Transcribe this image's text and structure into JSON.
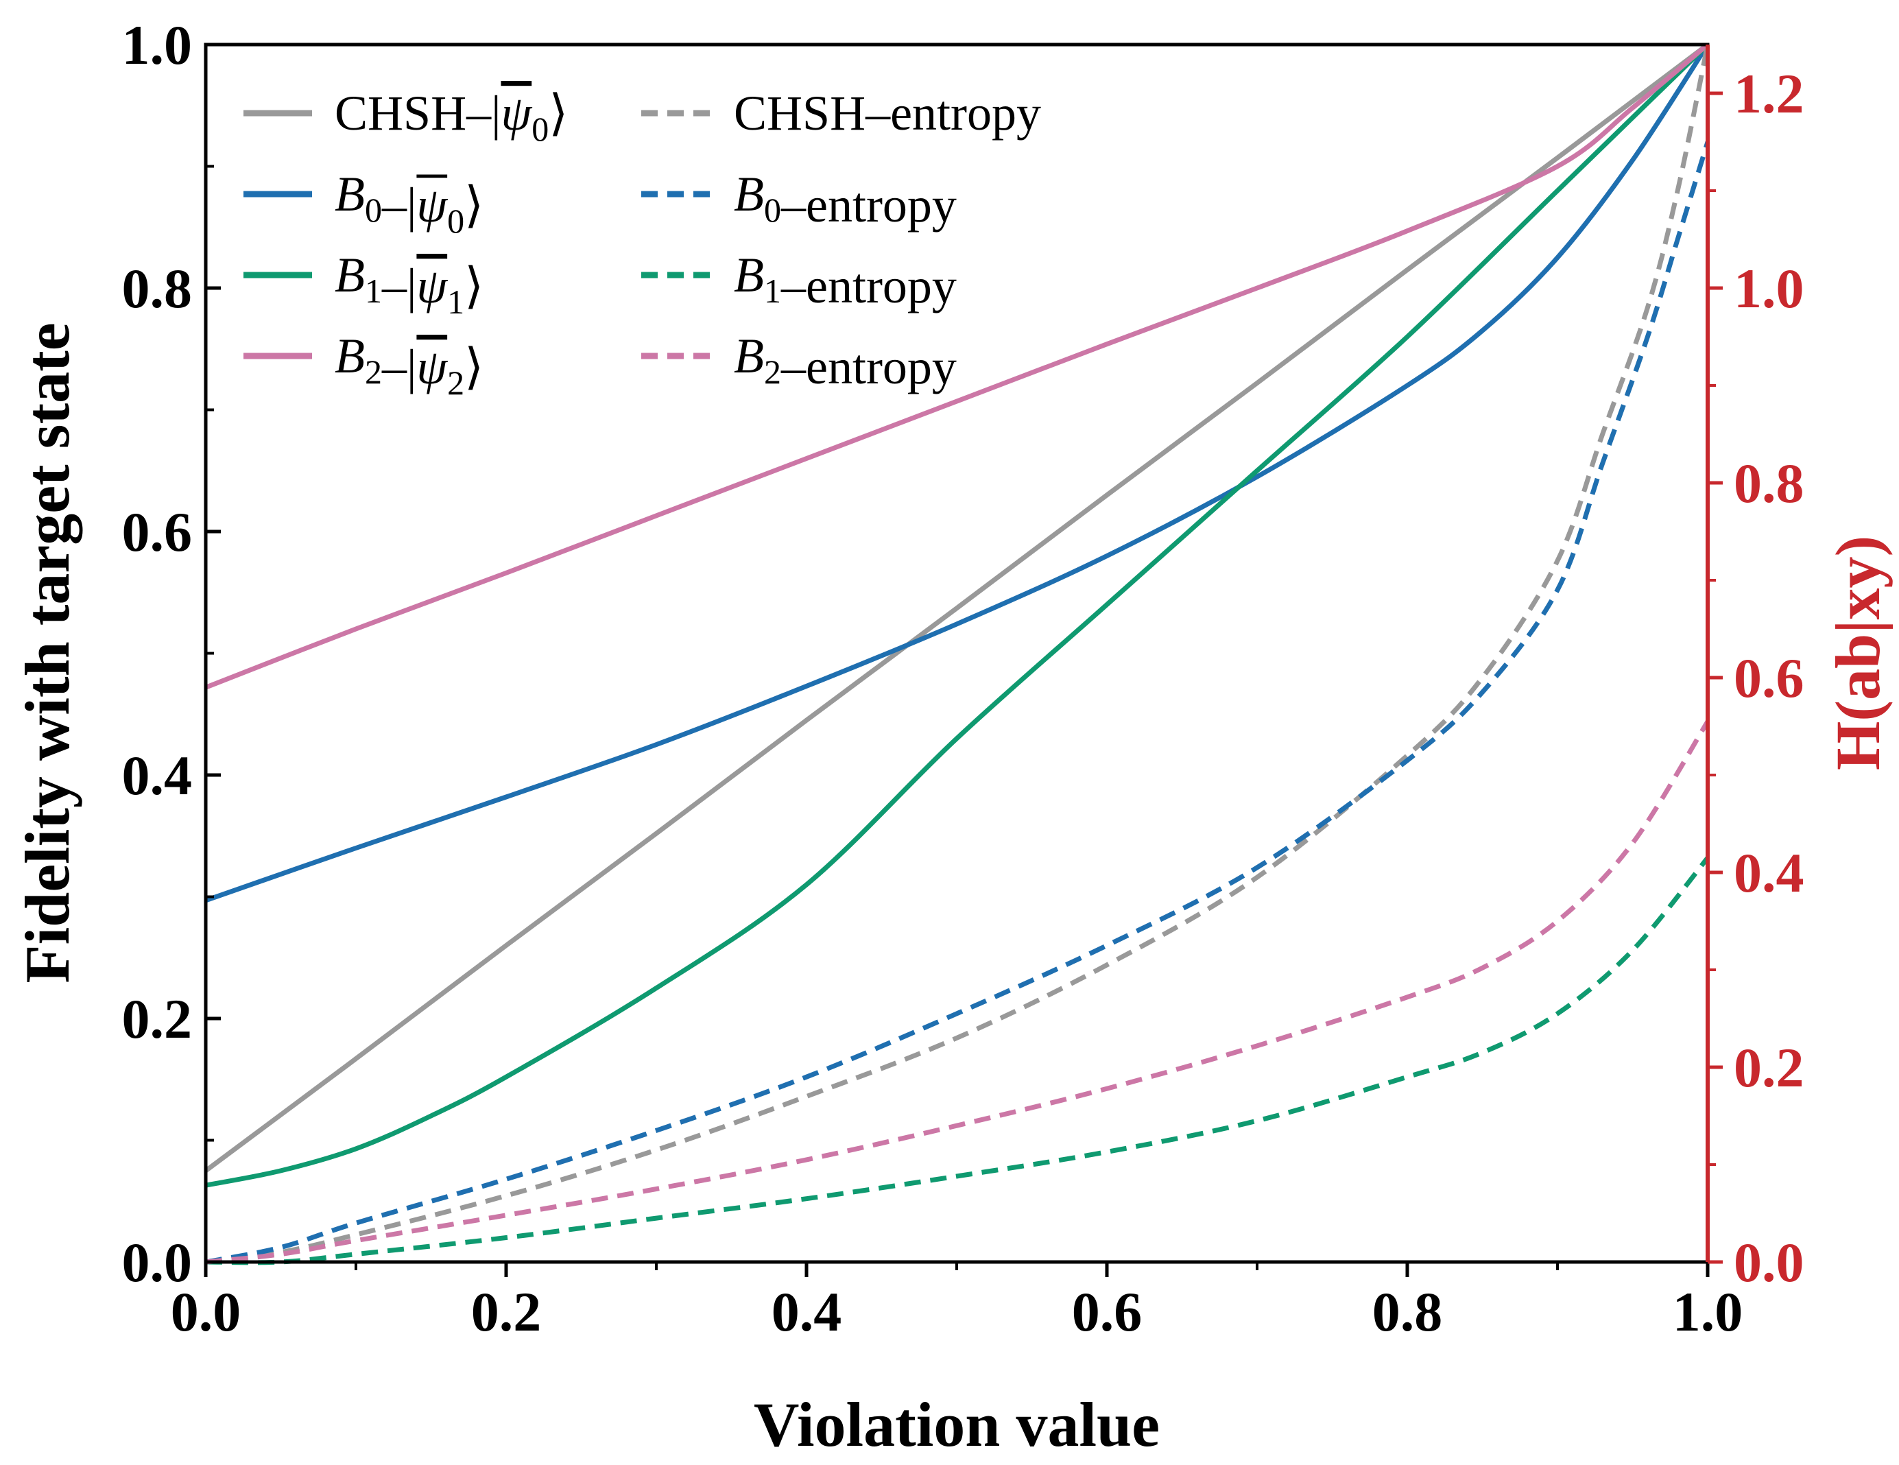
{
  "chart_data": {
    "type": "line",
    "x_axis": {
      "label": "Violation value",
      "range": [
        0,
        1
      ],
      "ticks": [
        0,
        0.2,
        0.4,
        0.6,
        0.8,
        1.0
      ],
      "tick_labels": [
        "0.0",
        "0.2",
        "0.4",
        "0.6",
        "0.8",
        "1.0"
      ]
    },
    "y_left_axis": {
      "label": "Fidelity with target state",
      "range": [
        0,
        1
      ],
      "ticks": [
        0,
        0.2,
        0.4,
        0.6,
        0.8,
        1.0
      ],
      "tick_labels": [
        "0.0",
        "0.2",
        "0.4",
        "0.6",
        "0.8",
        "1.0"
      ]
    },
    "y_right_axis": {
      "label": "H(ab|xy)",
      "range": [
        0,
        1.25
      ],
      "ticks": [
        0,
        0.2,
        0.4,
        0.6,
        0.8,
        1.0,
        1.2
      ],
      "tick_labels": [
        "0.0",
        "0.2",
        "0.4",
        "0.6",
        "0.8",
        "1.0",
        "1.2"
      ],
      "color": "#c8282d"
    },
    "legend_position": "top-left",
    "series": [
      {
        "name": "CHSH–|ψ̄0⟩",
        "legend_main": "CHSH",
        "legend_sub": "",
        "state_sub": "0",
        "axis": "left",
        "style": "solid",
        "color": "#999999",
        "x": [
          0,
          0.1,
          0.2,
          0.3,
          0.4,
          0.5,
          0.6,
          0.7,
          0.8,
          0.9,
          1.0
        ],
        "y": [
          0.075,
          0.167,
          0.26,
          0.352,
          0.445,
          0.537,
          0.63,
          0.722,
          0.815,
          0.907,
          1.0
        ]
      },
      {
        "name": "B0–|ψ̄0⟩",
        "legend_main": "B",
        "legend_sub": "0",
        "state_sub": "0",
        "axis": "left",
        "style": "solid",
        "color": "#1f6fb0",
        "x": [
          0,
          0.1,
          0.2,
          0.3,
          0.4,
          0.5,
          0.6,
          0.7,
          0.8,
          0.85,
          0.9,
          0.95,
          1.0
        ],
        "y": [
          0.297,
          0.34,
          0.382,
          0.425,
          0.473,
          0.524,
          0.58,
          0.645,
          0.72,
          0.765,
          0.825,
          0.905,
          1.0
        ]
      },
      {
        "name": "B1–|ψ̄1⟩",
        "legend_main": "B",
        "legend_sub": "1",
        "state_sub": "1",
        "axis": "left",
        "style": "solid",
        "color": "#0f9a70",
        "x": [
          0,
          0.05,
          0.1,
          0.15,
          0.2,
          0.3,
          0.4,
          0.5,
          0.6,
          0.7,
          0.8,
          0.9,
          1.0
        ],
        "y": [
          0.063,
          0.075,
          0.093,
          0.12,
          0.152,
          0.225,
          0.31,
          0.43,
          0.54,
          0.65,
          0.76,
          0.88,
          1.0
        ]
      },
      {
        "name": "B2–|ψ̄2⟩",
        "legend_main": "B",
        "legend_sub": "2",
        "state_sub": "2",
        "axis": "left",
        "style": "solid",
        "color": "#cc77a6",
        "x": [
          0,
          0.1,
          0.2,
          0.3,
          0.4,
          0.5,
          0.6,
          0.7,
          0.8,
          0.9,
          0.95,
          1.0
        ],
        "y": [
          0.472,
          0.52,
          0.566,
          0.613,
          0.66,
          0.707,
          0.754,
          0.8,
          0.847,
          0.9,
          0.948,
          1.0
        ]
      },
      {
        "name": "CHSH–entropy",
        "legend_main": "CHSH",
        "legend_sub": "",
        "axis": "right",
        "style": "dashed",
        "color": "#999999",
        "x": [
          0,
          0.05,
          0.1,
          0.2,
          0.3,
          0.4,
          0.5,
          0.6,
          0.7,
          0.8,
          0.85,
          0.9,
          0.93,
          0.96,
          0.98,
          1.0
        ],
        "y": [
          0.0,
          0.01,
          0.028,
          0.068,
          0.115,
          0.17,
          0.23,
          0.305,
          0.395,
          0.52,
          0.6,
          0.72,
          0.85,
          0.98,
          1.1,
          1.25
        ]
      },
      {
        "name": "B0–entropy",
        "legend_main": "B",
        "legend_sub": "0",
        "axis": "right",
        "style": "dashed",
        "color": "#1f6fb0",
        "x": [
          0,
          0.05,
          0.1,
          0.2,
          0.3,
          0.4,
          0.5,
          0.6,
          0.7,
          0.8,
          0.85,
          0.9,
          0.93,
          0.96,
          0.98,
          1.0
        ],
        "y": [
          0.0,
          0.015,
          0.04,
          0.085,
          0.135,
          0.19,
          0.255,
          0.325,
          0.405,
          0.515,
          0.585,
          0.69,
          0.82,
          0.95,
          1.05,
          1.15
        ]
      },
      {
        "name": "B1–entropy",
        "legend_main": "B",
        "legend_sub": "1",
        "axis": "right",
        "style": "dashed",
        "color": "#0f9a70",
        "x": [
          0,
          0.05,
          0.1,
          0.2,
          0.3,
          0.4,
          0.5,
          0.6,
          0.7,
          0.8,
          0.85,
          0.9,
          0.95,
          1.0
        ],
        "y": [
          0.0,
          0.0,
          0.008,
          0.025,
          0.045,
          0.065,
          0.088,
          0.113,
          0.145,
          0.19,
          0.215,
          0.255,
          0.32,
          0.415
        ]
      },
      {
        "name": "B2–entropy",
        "legend_main": "B",
        "legend_sub": "2",
        "axis": "right",
        "style": "dashed",
        "color": "#cc77a6",
        "x": [
          0,
          0.05,
          0.1,
          0.2,
          0.3,
          0.4,
          0.5,
          0.6,
          0.7,
          0.8,
          0.85,
          0.9,
          0.95,
          1.0
        ],
        "y": [
          0.0,
          0.008,
          0.022,
          0.048,
          0.075,
          0.105,
          0.14,
          0.178,
          0.222,
          0.272,
          0.302,
          0.35,
          0.43,
          0.555
        ]
      }
    ]
  }
}
